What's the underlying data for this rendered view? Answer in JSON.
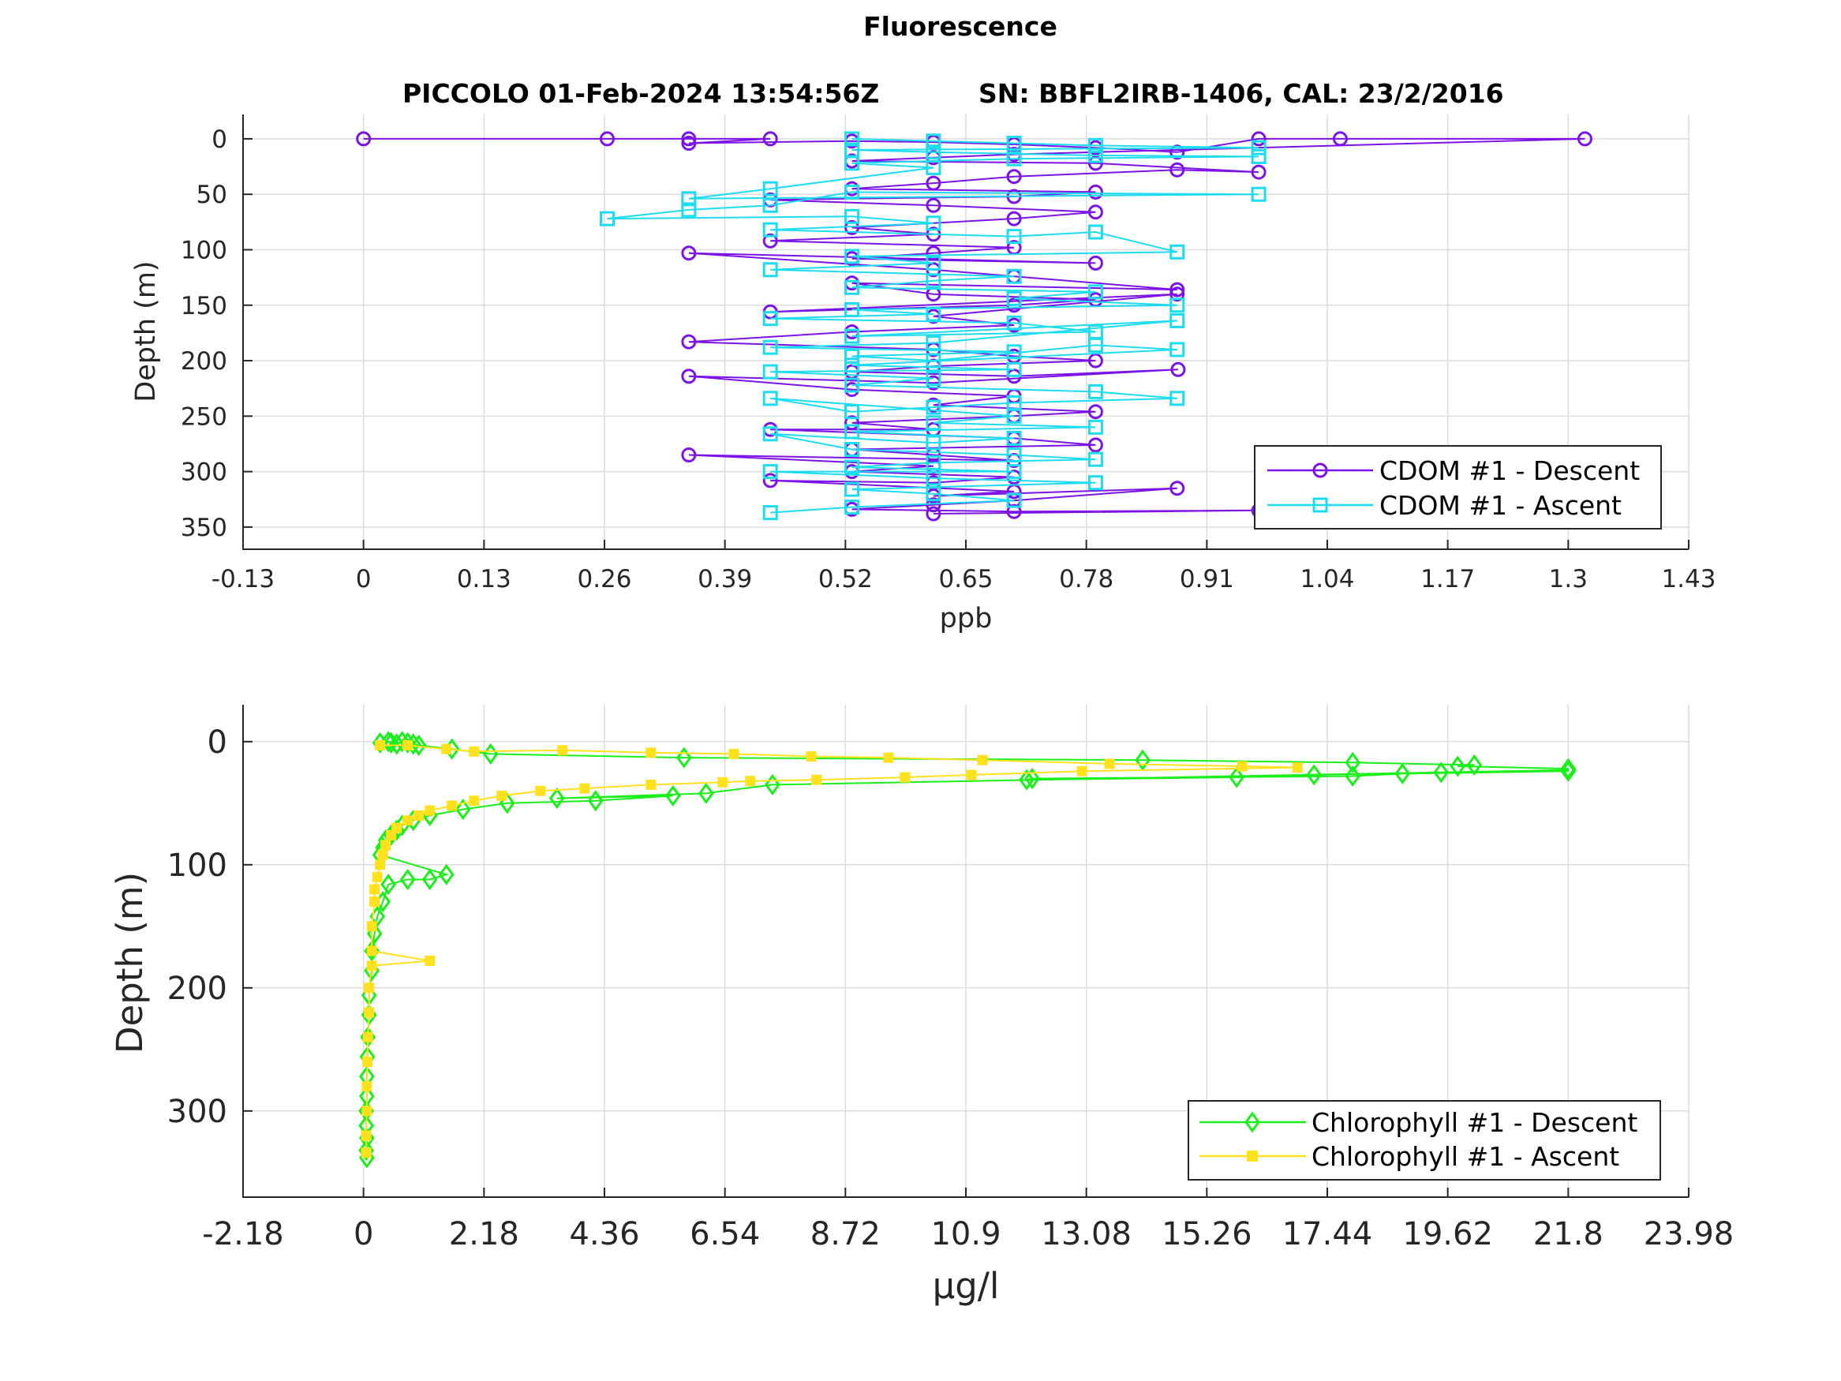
{
  "figure": {
    "title": "Fluorescence",
    "subtitle_left": "PICCOLO 01-Feb-2024 13:54:56Z",
    "subtitle_right": "SN: BBFL2IRB-1406, CAL: 23/2/2016"
  },
  "chart_data": [
    {
      "type": "line",
      "xlabel": "ppb",
      "ylabel": "Depth (m)",
      "xlim": [
        -0.13,
        1.43
      ],
      "ylim": [
        -22,
        370
      ],
      "y_reversed": true,
      "grid": true,
      "legend_placement": "bottom-right",
      "xticks": [
        -0.13,
        0,
        0.13,
        0.26,
        0.39,
        0.52,
        0.65,
        0.78,
        0.91,
        1.04,
        1.17,
        1.3,
        1.43
      ],
      "xtick_labels": [
        "-0.13",
        "0",
        "0.13",
        "0.26",
        "0.39",
        "0.52",
        "0.65",
        "0.78",
        "0.91",
        "1.04",
        "1.17",
        "1.3",
        "1.43"
      ],
      "yticks": [
        0,
        50,
        100,
        150,
        200,
        250,
        300,
        350
      ],
      "ytick_labels": [
        "0",
        "50",
        "100",
        "150",
        "200",
        "250",
        "300",
        "350"
      ],
      "series": [
        {
          "name": "CDOM #1 - Descent",
          "color": "#7b13e6",
          "marker": "circle",
          "x": [
            0.0,
            0.263,
            0.351,
            0.439,
            0.351,
            0.527,
            0.615,
            0.702,
            0.79,
            0.878,
            0.966,
            1.054,
            1.318,
            0.702,
            0.615,
            0.527,
            0.79,
            0.966,
            0.878,
            0.702,
            0.615,
            0.527,
            0.79,
            0.702,
            0.439,
            0.615,
            0.79,
            0.702,
            0.527,
            0.615,
            0.439,
            0.702,
            0.615,
            0.527,
            0.79,
            0.351,
            0.615,
            0.702,
            0.878,
            0.527,
            0.615,
            0.79,
            0.702,
            0.439,
            0.878,
            0.615,
            0.702,
            0.527,
            0.351,
            0.615,
            0.702,
            0.79,
            0.615,
            0.527,
            0.702,
            0.879,
            0.615,
            0.351,
            0.527,
            0.702,
            0.615,
            0.79,
            0.702,
            0.527,
            0.615,
            0.439,
            0.702,
            0.79,
            0.527,
            0.615,
            0.702,
            0.351,
            0.615,
            0.527,
            0.702,
            0.615,
            0.439,
            0.702,
            0.615,
            0.878,
            0.702,
            0.615,
            0.527,
            0.702,
            0.966,
            0.615
          ],
          "y": [
            0,
            0,
            0,
            0,
            4,
            2,
            3,
            5,
            8,
            12,
            0,
            0,
            0,
            14,
            17,
            20,
            22,
            30,
            28,
            34,
            40,
            45,
            48,
            52,
            55,
            60,
            66,
            72,
            80,
            86,
            92,
            98,
            103,
            108,
            112,
            103,
            118,
            124,
            136,
            130,
            140,
            145,
            150,
            156,
            140,
            160,
            168,
            174,
            183,
            190,
            196,
            200,
            205,
            210,
            214,
            208,
            220,
            214,
            226,
            232,
            240,
            246,
            250,
            256,
            262,
            262,
            270,
            276,
            280,
            285,
            290,
            285,
            295,
            300,
            305,
            310,
            308,
            318,
            322,
            315,
            326,
            330,
            334,
            336,
            335,
            338
          ]
        },
        {
          "name": "CDOM #1 - Ascent",
          "color": "#1edcf0",
          "marker": "square",
          "x": [
            0.527,
            0.615,
            0.702,
            0.79,
            0.966,
            0.527,
            0.615,
            0.79,
            0.966,
            0.702,
            0.527,
            0.615,
            0.439,
            0.351,
            0.966,
            0.527,
            0.439,
            0.351,
            0.263,
            0.527,
            0.615,
            0.439,
            0.702,
            0.79,
            0.878,
            0.527,
            0.615,
            0.439,
            0.702,
            0.615,
            0.527,
            0.79,
            0.702,
            0.878,
            0.527,
            0.615,
            0.439,
            0.702,
            0.79,
            0.527,
            0.878,
            0.615,
            0.439,
            0.702,
            0.527,
            0.615,
            0.79,
            0.878,
            0.527,
            0.702,
            0.439,
            0.615,
            0.527,
            0.79,
            0.878,
            0.702,
            0.615,
            0.527,
            0.439,
            0.702,
            0.615,
            0.79,
            0.527,
            0.702,
            0.615,
            0.439,
            0.527,
            0.702,
            0.79,
            0.615,
            0.527,
            0.702,
            0.439,
            0.615,
            0.79,
            0.527,
            0.615,
            0.702,
            0.527,
            0.439
          ],
          "y": [
            0,
            2,
            4,
            6,
            8,
            10,
            12,
            15,
            16,
            18,
            22,
            26,
            45,
            54,
            50,
            48,
            60,
            64,
            72,
            70,
            76,
            82,
            88,
            84,
            102,
            106,
            112,
            118,
            124,
            128,
            134,
            138,
            144,
            150,
            154,
            158,
            162,
            166,
            174,
            178,
            164,
            184,
            188,
            192,
            196,
            200,
            186,
            190,
            204,
            208,
            210,
            216,
            222,
            228,
            234,
            238,
            242,
            246,
            234,
            250,
            256,
            260,
            264,
            270,
            274,
            266,
            280,
            285,
            289,
            292,
            296,
            300,
            300,
            306,
            310,
            316,
            320,
            326,
            332,
            337
          ]
        }
      ]
    },
    {
      "type": "line",
      "xlabel": "µg/l",
      "ylabel": "Depth (m)",
      "xlim": [
        -2.18,
        23.98
      ],
      "ylim": [
        -30,
        370
      ],
      "y_reversed": true,
      "grid": true,
      "legend_placement": "bottom-right",
      "xticks": [
        -2.18,
        0,
        2.18,
        4.36,
        6.54,
        8.72,
        10.9,
        13.08,
        15.26,
        17.44,
        19.62,
        21.8,
        23.98
      ],
      "xtick_labels": [
        "-2.18",
        "0",
        "2.18",
        "4.36",
        "6.54",
        "8.72",
        "10.9",
        "13.08",
        "15.26",
        "17.44",
        "19.62",
        "21.8",
        "23.98"
      ],
      "yticks": [
        0,
        100,
        200,
        300
      ],
      "ytick_labels": [
        "0",
        "100",
        "200",
        "300"
      ],
      "series": [
        {
          "name": "Chlorophyll #1 - Descent",
          "color": "#19f019",
          "marker": "diamond",
          "x": [
            0.3,
            0.45,
            0.5,
            0.6,
            0.7,
            0.8,
            0.9,
            1.0,
            1.6,
            2.3,
            5.8,
            14.1,
            17.9,
            20.1,
            19.8,
            21.8,
            21.8,
            18.8,
            17.9,
            12.1,
            12.0,
            15.8,
            17.2,
            19.5,
            21.8,
            7.4,
            6.2,
            3.5,
            5.6,
            4.2,
            2.6,
            1.8,
            1.2,
            0.9,
            0.7,
            0.6,
            0.5,
            0.4,
            0.35,
            0.3,
            1.5,
            1.2,
            0.8,
            0.45,
            0.35,
            0.25,
            0.2,
            0.15,
            0.15,
            0.1,
            0.1,
            0.08,
            0.07,
            0.06,
            0.06,
            0.05,
            0.05,
            0.06,
            0.05,
            0.06
          ],
          "y": [
            1,
            0,
            1,
            2,
            0,
            1,
            2,
            3,
            6,
            10,
            13,
            15,
            17,
            19,
            20,
            22,
            24,
            26,
            28,
            30,
            31,
            29,
            27,
            25,
            23,
            35,
            42,
            46,
            44,
            48,
            50,
            55,
            60,
            64,
            68,
            72,
            76,
            80,
            86,
            92,
            108,
            112,
            112,
            116,
            130,
            142,
            156,
            170,
            186,
            206,
            222,
            240,
            256,
            272,
            288,
            300,
            312,
            322,
            332,
            338
          ]
        },
        {
          "name": "Chlorophyll #1 - Ascent",
          "color": "#ffe11e",
          "marker": "filled-square",
          "x": [
            0.3,
            0.8,
            1.5,
            2.0,
            3.6,
            5.2,
            6.7,
            8.1,
            9.5,
            11.2,
            13.5,
            15.9,
            16.9,
            13.0,
            11.0,
            9.8,
            8.2,
            7.0,
            6.5,
            5.2,
            4.0,
            3.2,
            2.5,
            2.0,
            1.6,
            1.2,
            1.0,
            0.8,
            0.6,
            0.5,
            0.4,
            0.35,
            0.3,
            0.25,
            0.2,
            0.2,
            0.15,
            0.15,
            1.2,
            0.15,
            0.1,
            0.1,
            0.08,
            0.07,
            0.06,
            0.06,
            0.05,
            0.05
          ],
          "y": [
            3,
            3,
            6,
            8,
            7,
            9,
            10,
            12,
            13,
            15,
            18,
            20,
            21,
            24,
            27,
            29,
            31,
            32,
            33,
            35,
            38,
            40,
            44,
            48,
            52,
            56,
            60,
            64,
            70,
            76,
            84,
            92,
            100,
            110,
            120,
            130,
            150,
            170,
            178,
            182,
            200,
            220,
            240,
            260,
            280,
            300,
            320,
            334
          ]
        }
      ]
    }
  ]
}
